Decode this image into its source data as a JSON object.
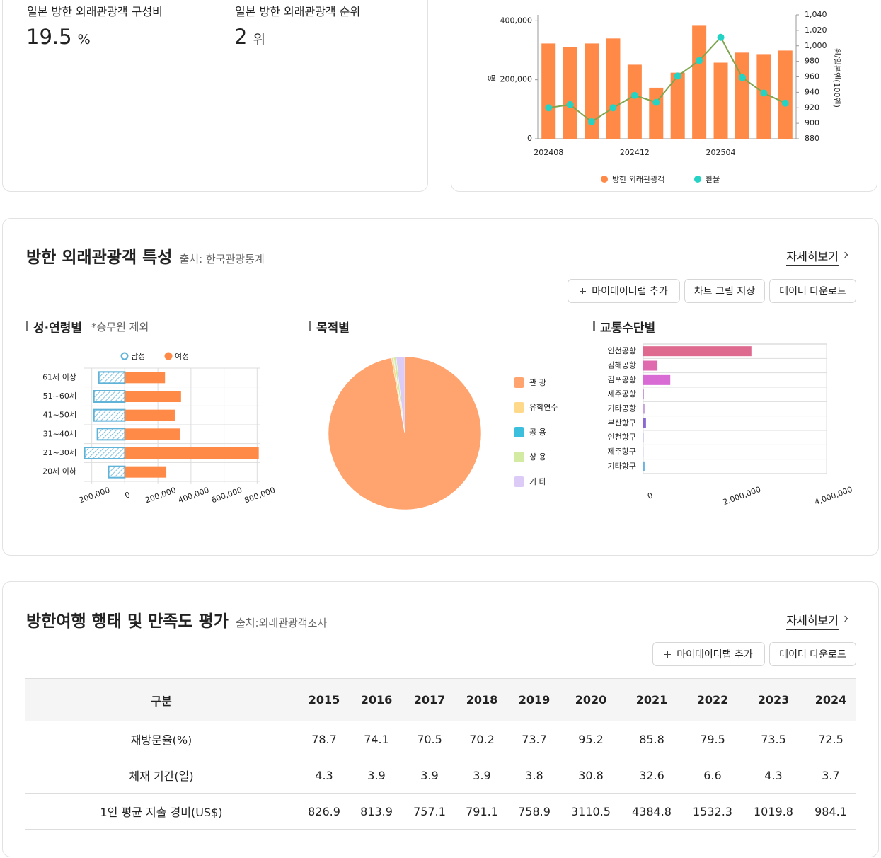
{
  "stats": [
    {
      "label": "일본 방한 외래관광객 구성비",
      "value": 19.5,
      "unit": "%"
    },
    {
      "label": "일본 방한 외래관광객 순위",
      "value": 2,
      "unit": "위"
    }
  ],
  "characteristics": {
    "title": "방한 외래관광객 특성",
    "source": "출처: 한국관광통계",
    "more": "자세히보기",
    "buttons": [
      "마이데이터랩 추가",
      "차트 그림 저장",
      "데이터 다운로드"
    ]
  },
  "chart_data": [
    {
      "type": "combo",
      "categories": [
        "202408",
        null,
        null,
        null,
        "202412",
        null,
        null,
        null,
        "202504",
        null,
        null,
        null
      ],
      "series": [
        {
          "name": "방한 외래관광객",
          "type": "bar",
          "color": "#ff8a48",
          "values": [
            323000,
            311000,
            323000,
            340000,
            251000,
            173000,
            224000,
            383000,
            258000,
            292000,
            287000,
            299000
          ]
        },
        {
          "name": "환율",
          "type": "line",
          "axis": "y2",
          "color": "#7ea54f",
          "marker_color": "#25d3c4",
          "values": [
            920,
            924,
            902,
            920,
            936,
            927,
            961,
            981,
            1011,
            959,
            939,
            926
          ]
        }
      ],
      "ylabel": "명",
      "y2label": "원/일본엔(100엔)",
      "ylim": [
        0,
        420000
      ],
      "yticks": [
        0,
        {
          "value": 200000,
          "label": "200,000"
        },
        {
          "value": 400000,
          "label": "400,000"
        }
      ],
      "y2lim": [
        880,
        1040
      ],
      "y2ticks": [
        880,
        900,
        920,
        940,
        960,
        980,
        {
          "value": 1000,
          "label": "1,000"
        },
        {
          "value": 1020,
          "label": "1,020"
        },
        {
          "value": 1040,
          "label": "1,040"
        }
      ],
      "grid": false,
      "legend": "bottom"
    },
    {
      "type": "diverging_bar",
      "title": "성·연령별",
      "note": "*승무원 제외",
      "categories": [
        "61세 이상",
        "51~60세",
        "41~50세",
        "31~40세",
        "21~30세",
        "20세 이하"
      ],
      "series": [
        {
          "name": "남성",
          "color": "#5fb2d8",
          "pattern": "hatch",
          "values": [
            -157000,
            -187000,
            -187000,
            -166000,
            -243000,
            -98000
          ]
        },
        {
          "name": "여성",
          "color": "#ff8a48",
          "values": [
            243000,
            340000,
            302000,
            332000,
            810000,
            251000
          ]
        }
      ],
      "xlim": [
        -250000,
        820000
      ],
      "xticks": [
        {
          "value": -200000,
          "label": "200,000"
        },
        0,
        {
          "value": 200000,
          "label": "200,000"
        },
        {
          "value": 400000,
          "label": "400,000"
        },
        {
          "value": 600000,
          "label": "600,000"
        },
        {
          "value": 800000,
          "label": "800,000"
        }
      ],
      "grid": true,
      "legend": "top"
    },
    {
      "type": "pie",
      "title": "목적별",
      "categories": [
        "관 광",
        "유학연수",
        "공 용",
        "상 용",
        "기 타"
      ],
      "values": [
        97.2,
        0.4,
        0.1,
        0.5,
        1.8
      ],
      "colors": [
        "#ffa46f",
        "#ffd98a",
        "#3bbfdc",
        "#d3eaa2",
        "#dccbf7"
      ],
      "legend": "right"
    },
    {
      "type": "hbar",
      "title": "교통수단별",
      "categories": [
        "인천공항",
        "김해공항",
        "김포공항",
        "제주공항",
        "기타공항",
        "부산항구",
        "인천항구",
        "제주항구",
        "기타항구"
      ],
      "values": [
        2360000,
        310000,
        590000,
        15000,
        30000,
        60000,
        5000,
        2000,
        30000
      ],
      "colors": [
        "#de6a90",
        "#e06aae",
        "#d86bd4",
        "#c99ad6",
        "#c9a2e0",
        "#8c68d4",
        "#7f8fe0",
        "#7aa0e0",
        "#6cb4e0"
      ],
      "xlim": [
        0,
        4000000
      ],
      "xticks": [
        0,
        {
          "value": 2000000,
          "label": "2,000,000"
        },
        {
          "value": 4000000,
          "label": "4,000,000"
        }
      ],
      "grid": true
    }
  ],
  "survey": {
    "title": "방한여행 행태 및 만족도 평가",
    "source": "출처:외래관광객조사",
    "more": "자세히보기",
    "buttons": [
      "마이데이터랩 추가",
      "데이터 다운로드"
    ],
    "table": {
      "header": [
        "구분",
        "2015",
        "2016",
        "2017",
        "2018",
        "2019",
        "2020",
        "2021",
        "2022",
        "2023",
        "2024"
      ],
      "rows": [
        [
          "재방문율(%)",
          78.7,
          74.1,
          70.5,
          70.2,
          73.7,
          95.2,
          85.8,
          79.5,
          73.5,
          72.5
        ],
        [
          "체재 기간(일)",
          4.3,
          3.9,
          3.9,
          3.9,
          3.8,
          30.8,
          32.6,
          6.6,
          4.3,
          3.7
        ],
        [
          "1인 평균 지출 경비(US$)",
          826.9,
          813.9,
          757.1,
          791.1,
          758.9,
          3110.5,
          4384.8,
          1532.3,
          1019.8,
          984.1
        ]
      ]
    }
  }
}
